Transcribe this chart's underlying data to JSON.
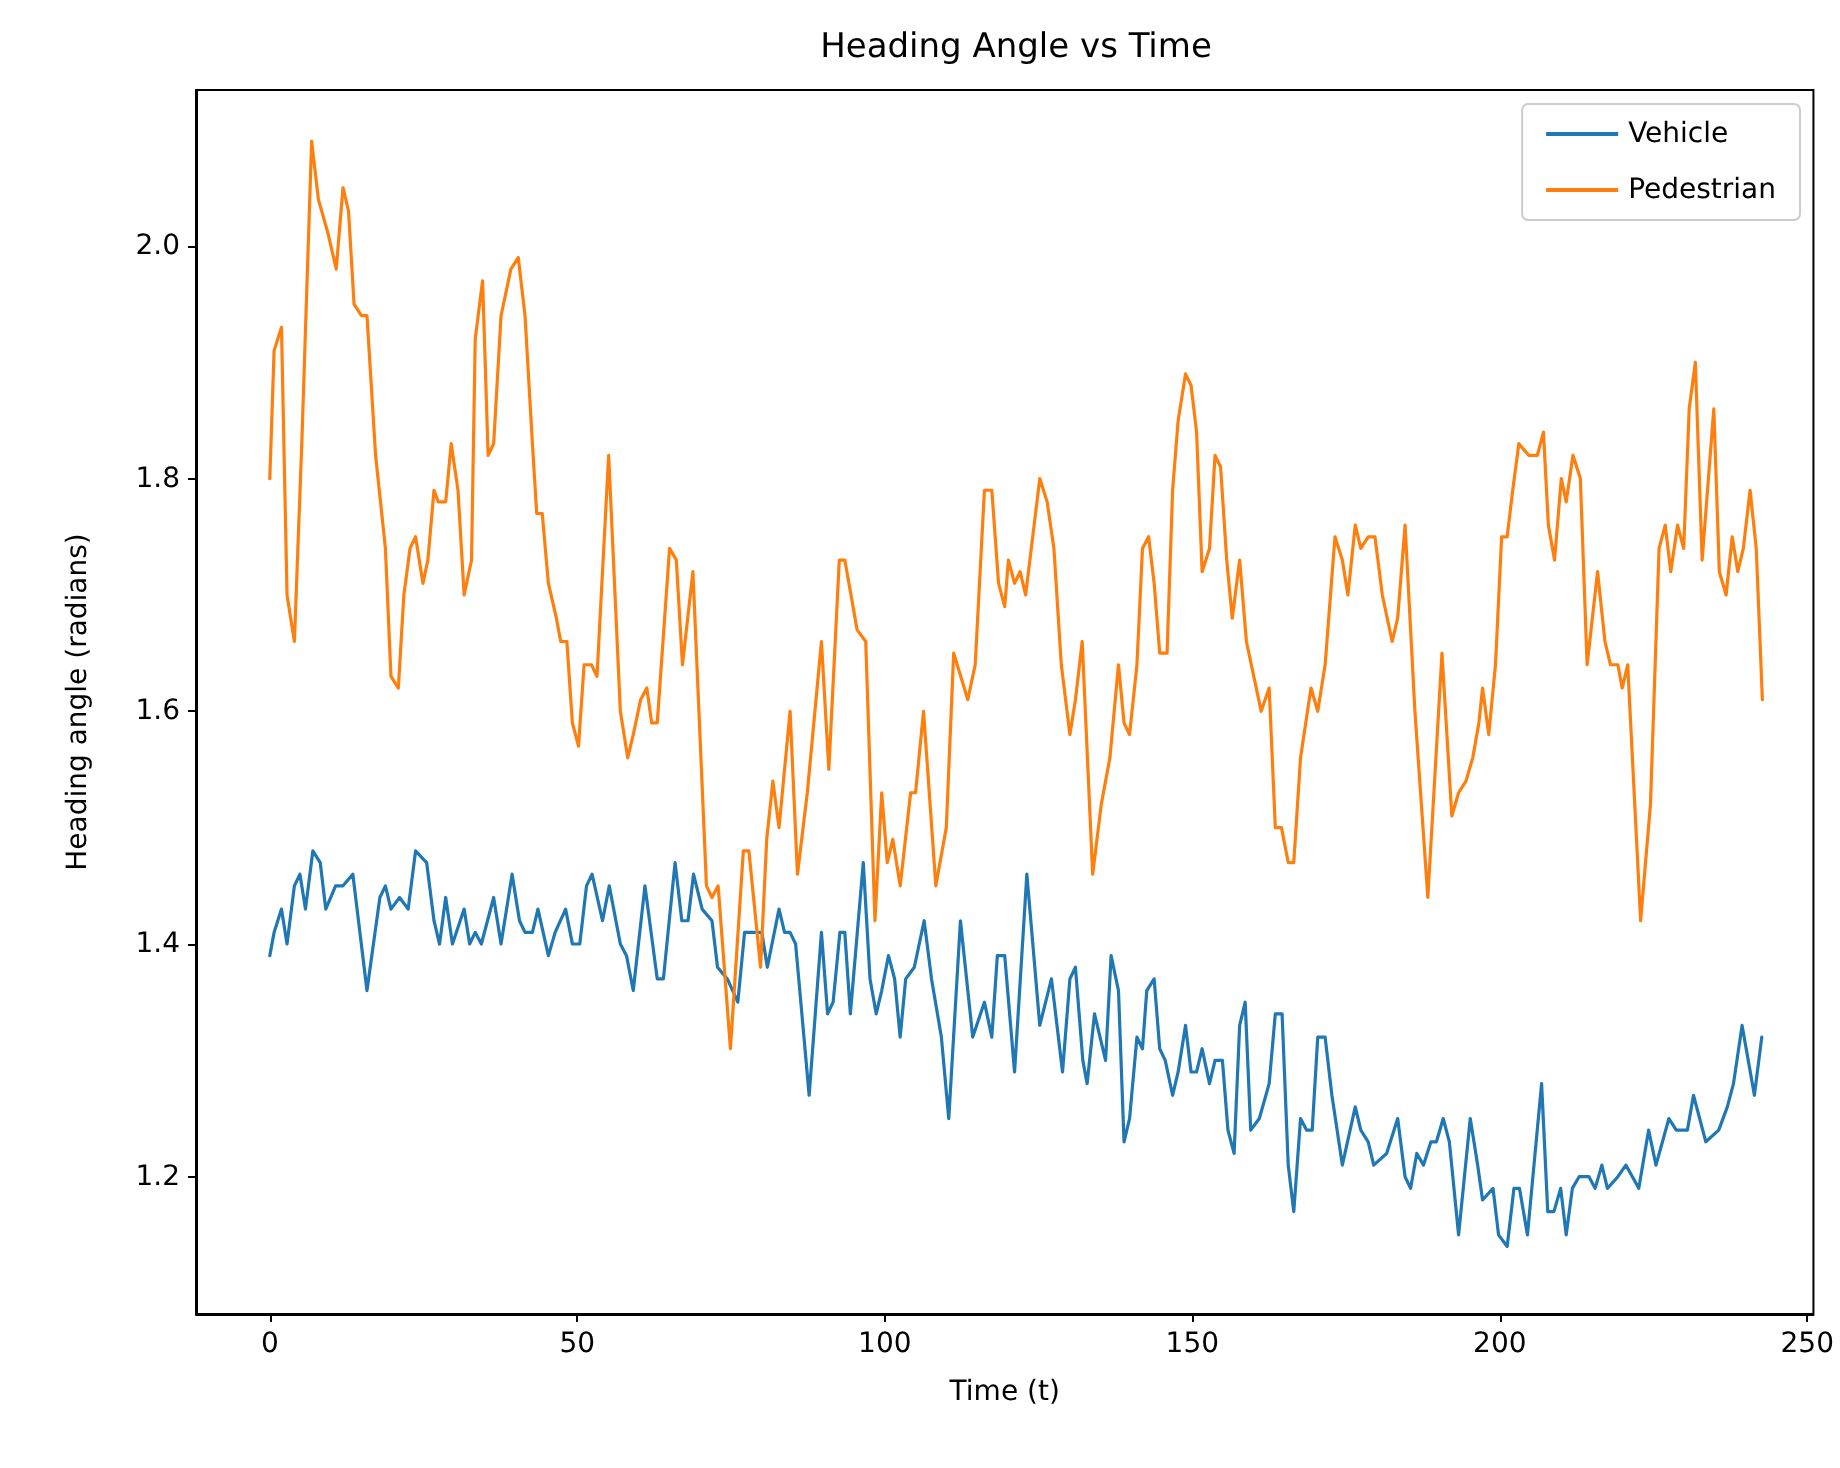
{
  "chart_data": {
    "type": "line",
    "title": "Heading Angle vs Time",
    "xlabel": "Time (t)",
    "ylabel": "Heading angle (radians)",
    "xlim": [
      -12,
      251
    ],
    "ylim": [
      1.082,
      2.134
    ],
    "xticks": [
      0,
      50,
      100,
      150,
      200,
      250
    ],
    "yticks": [
      {
        "value": 1.2,
        "label": "1.2"
      },
      {
        "value": 1.4,
        "label": "1.4"
      },
      {
        "value": 1.6,
        "label": "1.6"
      },
      {
        "value": 1.8,
        "label": "1.8"
      },
      {
        "value": 2.0,
        "label": "2.0"
      }
    ],
    "grid": false,
    "legend": "top right",
    "line_style": "solid",
    "series": [
      {
        "name": "Vehicle",
        "color": "#1f77b4",
        "x": [
          0,
          0.7,
          1.9,
          2.8,
          4,
          4.9,
          5.8,
          7,
          8.2,
          9.1,
          10.7,
          11.9,
          13.5,
          15.8,
          17.9,
          18.8,
          19.7,
          21.1,
          22.5,
          23.7,
          25.5,
          26.7,
          27.6,
          28.6,
          29.7,
          31.6,
          32.5,
          33.4,
          34.4,
          36.4,
          37.6,
          39.4,
          40.6,
          41.5,
          42.7,
          43.6,
          45.3,
          46.4,
          48.1,
          49.2,
          50.4,
          51.5,
          52.4,
          54.1,
          55.2,
          57,
          58,
          59.1,
          61,
          63,
          64,
          65.9,
          67,
          68,
          68.9,
          70.3,
          71.9,
          72.8,
          74.4,
          76.1,
          77.2,
          78.6,
          80,
          80.9,
          82.8,
          83.7,
          84.6,
          85.5,
          87.7,
          89.7,
          90.7,
          91.6,
          92.7,
          93.5,
          94.4,
          96.5,
          97.6,
          98.6,
          99.5,
          100.6,
          101.6,
          102.5,
          103.4,
          104.8,
          106.4,
          107.6,
          109.2,
          110.4,
          112.3,
          114.3,
          116.2,
          117.4,
          118.3,
          119.5,
          121.1,
          123.1,
          125.2,
          127.1,
          128.9,
          130.1,
          131,
          132.2,
          132.9,
          134.1,
          135.9,
          136.8,
          138,
          138.9,
          139.8,
          141,
          141.9,
          142.6,
          143.8,
          144.7,
          145.6,
          146.8,
          147.7,
          148.9,
          149.8,
          150.7,
          151.6,
          152.8,
          153.7,
          154.9,
          155.8,
          156.8,
          157.7,
          158.6,
          159.5,
          160.9,
          162.5,
          163.5,
          164.6,
          165.6,
          166.5,
          167.6,
          168.6,
          169.5,
          170.4,
          171.6,
          172.7,
          174.4,
          176.5,
          177.4,
          178.6,
          179.5,
          181.6,
          183.4,
          184.6,
          185.5,
          186.5,
          187.6,
          188.8,
          189.7,
          190.8,
          191.8,
          193.3,
          195.2,
          196.4,
          197.2,
          198.9,
          199.8,
          201.2,
          202.3,
          203.2,
          204.5,
          206.8,
          207.8,
          208.8,
          209.9,
          210.8,
          211.8,
          212.9,
          214.5,
          215.5,
          216.6,
          217.5,
          219.2,
          220.5,
          222.6,
          224.2,
          225.4,
          227.5,
          228.7,
          230.5,
          231.5,
          233.5,
          235.6,
          237,
          238,
          239.4,
          241.4,
          242.6
        ],
        "values": [
          1.39,
          1.41,
          1.43,
          1.4,
          1.45,
          1.46,
          1.43,
          1.48,
          1.47,
          1.43,
          1.45,
          1.45,
          1.46,
          1.36,
          1.44,
          1.45,
          1.43,
          1.44,
          1.43,
          1.48,
          1.47,
          1.42,
          1.4,
          1.44,
          1.4,
          1.43,
          1.4,
          1.41,
          1.4,
          1.44,
          1.4,
          1.46,
          1.42,
          1.41,
          1.41,
          1.43,
          1.39,
          1.41,
          1.43,
          1.4,
          1.4,
          1.45,
          1.46,
          1.42,
          1.45,
          1.4,
          1.39,
          1.36,
          1.45,
          1.37,
          1.37,
          1.47,
          1.42,
          1.42,
          1.46,
          1.43,
          1.42,
          1.38,
          1.37,
          1.35,
          1.41,
          1.41,
          1.41,
          1.38,
          1.43,
          1.41,
          1.41,
          1.4,
          1.27,
          1.41,
          1.34,
          1.35,
          1.41,
          1.41,
          1.34,
          1.47,
          1.37,
          1.34,
          1.36,
          1.39,
          1.37,
          1.32,
          1.37,
          1.38,
          1.42,
          1.37,
          1.32,
          1.25,
          1.42,
          1.32,
          1.35,
          1.32,
          1.39,
          1.39,
          1.29,
          1.46,
          1.33,
          1.37,
          1.29,
          1.37,
          1.38,
          1.3,
          1.28,
          1.34,
          1.3,
          1.39,
          1.36,
          1.23,
          1.25,
          1.32,
          1.31,
          1.36,
          1.37,
          1.31,
          1.3,
          1.27,
          1.29,
          1.33,
          1.29,
          1.29,
          1.31,
          1.28,
          1.3,
          1.3,
          1.24,
          1.22,
          1.33,
          1.35,
          1.24,
          1.25,
          1.28,
          1.34,
          1.34,
          1.21,
          1.17,
          1.25,
          1.24,
          1.24,
          1.32,
          1.32,
          1.27,
          1.21,
          1.26,
          1.24,
          1.23,
          1.21,
          1.22,
          1.25,
          1.2,
          1.19,
          1.22,
          1.21,
          1.23,
          1.23,
          1.25,
          1.23,
          1.15,
          1.25,
          1.21,
          1.18,
          1.19,
          1.15,
          1.14,
          1.19,
          1.19,
          1.15,
          1.28,
          1.17,
          1.17,
          1.19,
          1.15,
          1.19,
          1.2,
          1.2,
          1.19,
          1.21,
          1.19,
          1.2,
          1.21,
          1.19,
          1.24,
          1.21,
          1.25,
          1.24,
          1.24,
          1.27,
          1.23,
          1.24,
          1.26,
          1.28,
          1.33,
          1.27,
          1.32
        ]
      },
      {
        "name": "Pedestrian",
        "color": "#ff7f0e",
        "x": [
          0,
          0.7,
          1.9,
          2.8,
          4,
          5.2,
          6.8,
          7.9,
          9.5,
          10.8,
          11.9,
          12.8,
          13.7,
          14.9,
          15.8,
          17.2,
          18.8,
          19.7,
          20.9,
          21.8,
          22.8,
          23.7,
          24.9,
          25.7,
          26.7,
          27.4,
          28.6,
          29.5,
          30.6,
          31.6,
          32.8,
          33.4,
          34.6,
          35.5,
          36.4,
          37.6,
          39.2,
          40.4,
          41.5,
          42.7,
          43.4,
          44.3,
          45.3,
          46.6,
          47.3,
          48.3,
          49.2,
          50.2,
          51.1,
          52.3,
          53.2,
          55.1,
          57,
          58.2,
          59.1,
          60.3,
          61.3,
          62.1,
          63,
          65,
          66.1,
          67.1,
          68.8,
          71,
          71.9,
          72.9,
          74.9,
          77,
          77.9,
          79.8,
          80.8,
          81.8,
          82.8,
          84.6,
          85.8,
          87.4,
          89.7,
          90.9,
          92.6,
          93.5,
          95.5,
          96.9,
          98.4,
          99.5,
          100.4,
          101.3,
          102.5,
          104.2,
          105,
          106.3,
          108.3,
          110,
          111.2,
          113.5,
          114.7,
          116.2,
          117.4,
          118.5,
          119.5,
          120.1,
          121.1,
          122,
          122.9,
          125.2,
          126.4,
          127.5,
          128.7,
          130.1,
          131,
          132.1,
          133.8,
          135.2,
          136.6,
          138,
          138.9,
          139.8,
          141,
          141.9,
          142.9,
          143.8,
          144.7,
          145.9,
          146.8,
          147.7,
          148.9,
          149.8,
          150.7,
          151.6,
          152.8,
          153.7,
          154.6,
          155.6,
          156.5,
          157.7,
          158.8,
          161.2,
          162.5,
          163.5,
          164.5,
          165.6,
          166.5,
          167.6,
          169.3,
          170.4,
          171.6,
          173.2,
          174.4,
          175.3,
          176.5,
          177.4,
          178.6,
          179.7,
          180.9,
          182.5,
          183.4,
          184.6,
          186.2,
          188.3,
          190.6,
          192.2,
          193.3,
          194.5,
          195.6,
          196.6,
          197.2,
          198.2,
          199.3,
          200.3,
          201.2,
          202.1,
          203.1,
          204.7,
          206.1,
          207.1,
          207.9,
          208.9,
          210,
          210.8,
          211.9,
          213.1,
          214.2,
          215.9,
          217.1,
          218,
          219.2,
          219.9,
          220.8,
          222.9,
          224.5,
          225.9,
          226.9,
          227.8,
          228.9,
          229.9,
          230.8,
          231.8,
          232.9,
          234.8,
          235.7,
          236.8,
          237.8,
          238.7,
          239.6,
          240.7,
          241.7,
          242.7
        ],
        "values": [
          1.8,
          1.91,
          1.93,
          1.7,
          1.66,
          1.83,
          2.09,
          2.04,
          2.01,
          1.98,
          2.05,
          2.03,
          1.95,
          1.94,
          1.94,
          1.82,
          1.74,
          1.63,
          1.62,
          1.7,
          1.74,
          1.75,
          1.71,
          1.73,
          1.79,
          1.78,
          1.78,
          1.83,
          1.79,
          1.7,
          1.73,
          1.92,
          1.97,
          1.82,
          1.83,
          1.94,
          1.98,
          1.99,
          1.94,
          1.83,
          1.77,
          1.77,
          1.71,
          1.68,
          1.66,
          1.66,
          1.59,
          1.57,
          1.64,
          1.64,
          1.63,
          1.82,
          1.6,
          1.56,
          1.58,
          1.61,
          1.62,
          1.59,
          1.59,
          1.74,
          1.73,
          1.64,
          1.72,
          1.45,
          1.44,
          1.45,
          1.31,
          1.48,
          1.48,
          1.38,
          1.49,
          1.54,
          1.5,
          1.6,
          1.46,
          1.53,
          1.66,
          1.55,
          1.73,
          1.73,
          1.67,
          1.66,
          1.42,
          1.53,
          1.47,
          1.49,
          1.45,
          1.53,
          1.53,
          1.6,
          1.45,
          1.5,
          1.65,
          1.61,
          1.64,
          1.79,
          1.79,
          1.71,
          1.69,
          1.73,
          1.71,
          1.72,
          1.7,
          1.8,
          1.78,
          1.74,
          1.64,
          1.58,
          1.61,
          1.66,
          1.46,
          1.52,
          1.56,
          1.64,
          1.59,
          1.58,
          1.64,
          1.74,
          1.75,
          1.71,
          1.65,
          1.65,
          1.79,
          1.85,
          1.89,
          1.88,
          1.84,
          1.72,
          1.74,
          1.82,
          1.81,
          1.73,
          1.68,
          1.73,
          1.66,
          1.6,
          1.62,
          1.5,
          1.5,
          1.47,
          1.47,
          1.56,
          1.62,
          1.6,
          1.64,
          1.75,
          1.73,
          1.7,
          1.76,
          1.74,
          1.75,
          1.75,
          1.7,
          1.66,
          1.68,
          1.76,
          1.6,
          1.44,
          1.65,
          1.51,
          1.53,
          1.54,
          1.56,
          1.59,
          1.62,
          1.58,
          1.64,
          1.75,
          1.75,
          1.79,
          1.83,
          1.82,
          1.82,
          1.84,
          1.76,
          1.73,
          1.8,
          1.78,
          1.82,
          1.8,
          1.64,
          1.72,
          1.66,
          1.64,
          1.64,
          1.62,
          1.64,
          1.42,
          1.52,
          1.74,
          1.76,
          1.72,
          1.76,
          1.74,
          1.86,
          1.9,
          1.73,
          1.86,
          1.72,
          1.7,
          1.75,
          1.72,
          1.74,
          1.79,
          1.74,
          1.61
        ]
      }
    ]
  }
}
